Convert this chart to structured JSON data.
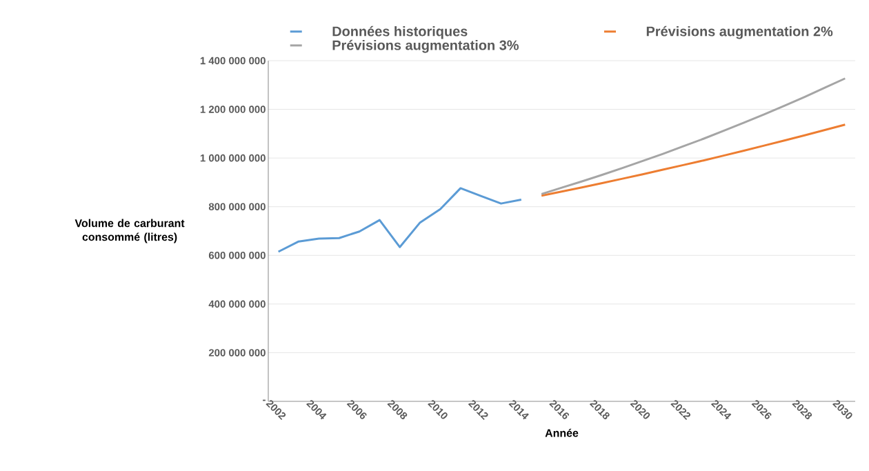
{
  "chart_data": {
    "type": "line",
    "xlabel": "Année",
    "ylabel": "Volume de carburant consommé (litres)",
    "series": [
      {
        "name": "Données historiques",
        "color": "#5b9bd5",
        "x": [
          2002,
          2003,
          2004,
          2005,
          2006,
          2007,
          2008,
          2009,
          2010,
          2011,
          2012,
          2013,
          2014
        ],
        "values": [
          615000000,
          657000000,
          669000000,
          671000000,
          698000000,
          745000000,
          634000000,
          735000000,
          790000000,
          876000000,
          844000000,
          813000000,
          829000000
        ]
      },
      {
        "name": "Prévisions augmentation 2%",
        "color": "#ed7d31",
        "x": [
          2015,
          2016,
          2017,
          2018,
          2019,
          2020,
          2021,
          2022,
          2023,
          2024,
          2025,
          2026,
          2027,
          2028,
          2029,
          2030
        ],
        "values": [
          845000000,
          862000000,
          879000000,
          897000000,
          915000000,
          933000000,
          952000000,
          971000000,
          990000000,
          1010000000,
          1030000000,
          1051000000,
          1072000000,
          1093000000,
          1115000000,
          1137000000
        ]
      },
      {
        "name": "Prévisions augmentation 3%",
        "color": "#a5a5a5",
        "x": [
          2015,
          2016,
          2017,
          2018,
          2019,
          2020,
          2021,
          2022,
          2023,
          2024,
          2025,
          2026,
          2027,
          2028,
          2029,
          2030
        ],
        "values": [
          852000000,
          878000000,
          904000000,
          931000000,
          959000000,
          988000000,
          1017000000,
          1048000000,
          1079000000,
          1112000000,
          1145000000,
          1179000000,
          1215000000,
          1251000000,
          1289000000,
          1327000000
        ]
      }
    ],
    "xlim": [
      2001.5,
      2030.5
    ],
    "xticks": [
      2002,
      2004,
      2006,
      2008,
      2010,
      2012,
      2014,
      2016,
      2018,
      2020,
      2022,
      2024,
      2026,
      2028,
      2030
    ],
    "ylim": [
      0,
      1400000000
    ],
    "yticks": [
      {
        "value": 0,
        "label": "-"
      },
      {
        "value": 200000000,
        "label": "200 000 000"
      },
      {
        "value": 400000000,
        "label": "400 000 000"
      },
      {
        "value": 600000000,
        "label": "600 000 000"
      },
      {
        "value": 800000000,
        "label": "800 000 000"
      },
      {
        "value": 1000000000,
        "label": "1 000 000 000"
      },
      {
        "value": 1200000000,
        "label": "1 200 000 000"
      },
      {
        "value": 1400000000,
        "label": "1 400 000 000"
      }
    ],
    "grid": "y",
    "legend": "top",
    "marker": "none",
    "line_style": "solid"
  }
}
